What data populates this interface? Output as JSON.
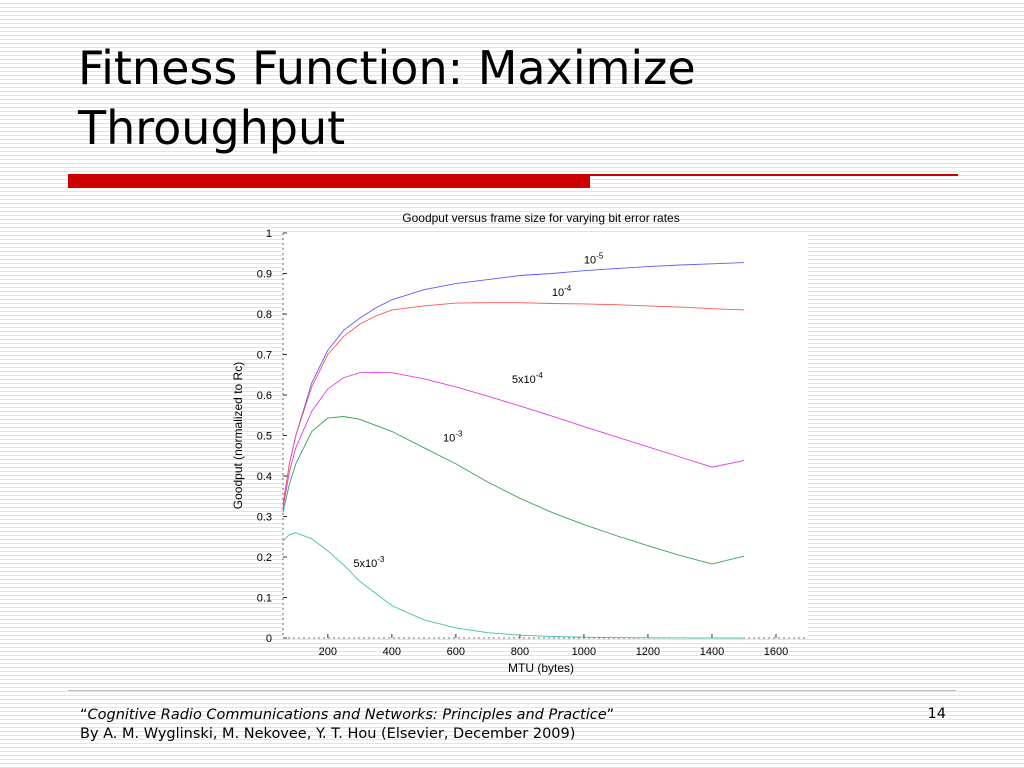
{
  "slide": {
    "title": "Fitness Function: Maximize Throughput",
    "page_number": "14",
    "citation": {
      "open_quote": "“",
      "book_title": "Cognitive Radio Communications and Networks: Principles and Practice",
      "close_quote": "”",
      "authors": "By A. M. Wyglinski, M. Nekovee, Y. T. Hou (Elsevier, December 2009)"
    }
  },
  "chart_data": {
    "type": "line",
    "title": "Goodput versus frame size for varying bit error rates",
    "xlabel": "MTU (bytes)",
    "ylabel": "Goodput (normalized to Rc)",
    "xlim": [
      60,
      1700
    ],
    "ylim": [
      0,
      1
    ],
    "grid": false,
    "xticks": [
      200,
      400,
      600,
      800,
      1000,
      1200,
      1400,
      1600
    ],
    "yticks": [
      0,
      0.1,
      0.2,
      0.3,
      0.4,
      0.5,
      0.6,
      0.7,
      0.8,
      0.9,
      1
    ],
    "x": [
      60,
      80,
      100,
      150,
      200,
      250,
      300,
      350,
      400,
      500,
      600,
      700,
      800,
      900,
      1000,
      1100,
      1200,
      1300,
      1400,
      1500
    ],
    "series": [
      {
        "name_base": "10",
        "name_exp": "-5",
        "color": "#5b5bff",
        "values": [
          0.33,
          0.43,
          0.5,
          0.63,
          0.71,
          0.76,
          0.79,
          0.815,
          0.835,
          0.86,
          0.875,
          0.885,
          0.895,
          0.9,
          0.907,
          0.912,
          0.917,
          0.921,
          0.924,
          0.927
        ]
      },
      {
        "name_base": "10",
        "name_exp": "-4",
        "color": "#ff5555",
        "values": [
          0.33,
          0.43,
          0.5,
          0.62,
          0.7,
          0.745,
          0.775,
          0.795,
          0.81,
          0.82,
          0.827,
          0.828,
          0.828,
          0.826,
          0.825,
          0.823,
          0.82,
          0.817,
          0.813,
          0.81
        ]
      },
      {
        "name_base": "5x10",
        "name_exp": "-4",
        "color": "#e040e0",
        "values": [
          0.32,
          0.41,
          0.47,
          0.56,
          0.615,
          0.643,
          0.655,
          0.656,
          0.655,
          0.64,
          0.62,
          0.597,
          0.573,
          0.548,
          0.522,
          0.497,
          0.472,
          0.447,
          0.422,
          0.438
        ]
      },
      {
        "name_base": "10",
        "name_exp": "-3",
        "color": "#3aa05a",
        "values": [
          0.31,
          0.38,
          0.43,
          0.51,
          0.543,
          0.547,
          0.54,
          0.525,
          0.51,
          0.47,
          0.43,
          0.385,
          0.345,
          0.31,
          0.28,
          0.253,
          0.228,
          0.204,
          0.183,
          0.202
        ]
      },
      {
        "name_base": "5x10",
        "name_exp": "-3",
        "color": "#40c0b0",
        "values": [
          0.24,
          0.255,
          0.26,
          0.245,
          0.215,
          0.18,
          0.14,
          0.11,
          0.08,
          0.045,
          0.025,
          0.013,
          0.007,
          0.004,
          0.002,
          0.001,
          0.0005,
          0.0002,
          0.0001,
          0.0
        ]
      }
    ],
    "annotations": [
      {
        "series": 0,
        "at_x": 1000,
        "at_y": 0.925
      },
      {
        "series": 1,
        "at_x": 900,
        "at_y": 0.845
      },
      {
        "series": 2,
        "at_x": 775,
        "at_y": 0.63
      },
      {
        "series": 3,
        "at_x": 560,
        "at_y": 0.485
      },
      {
        "series": 4,
        "at_x": 280,
        "at_y": 0.175
      }
    ]
  }
}
